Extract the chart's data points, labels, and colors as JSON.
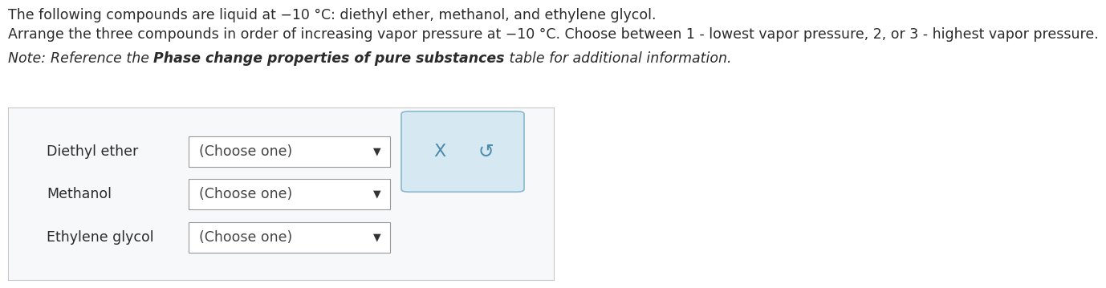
{
  "bg_color": "#ffffff",
  "text_color": "#2b2b2b",
  "line1": "The following compounds are liquid at −10 °C: diethyl ether, methanol, and ethylene glycol.",
  "line2": "Arrange the three compounds in order of increasing vapor pressure at −10 °C. Choose between 1 - lowest vapor pressure, 2, or 3 - highest vapor pressure.",
  "note_italic_1": "Note: ",
  "note_italic_2": "Reference the ",
  "note_bold_italic": "Phase change properties of pure substances",
  "note_italic_3": " table for additional information.",
  "compounds": [
    "Diethyl ether",
    "Methanol",
    "Ethylene glycol"
  ],
  "dropdown_text": "(Choose one)",
  "dropdown_bg": "#ffffff",
  "dropdown_border": "#999999",
  "box_bg": "#d6e8f2",
  "box_border": "#8ab8cf",
  "box_x_symbol": "X",
  "box_s_symbol": "↺",
  "panel_bg": "#f7f8f9",
  "panel_border": "#c8c8c8",
  "font_size_main": 12.5,
  "font_size_note": 12.5,
  "font_size_compound": 12.5,
  "font_size_dropdown": 12.5,
  "font_size_arrow": 9,
  "font_size_symbols": 14
}
